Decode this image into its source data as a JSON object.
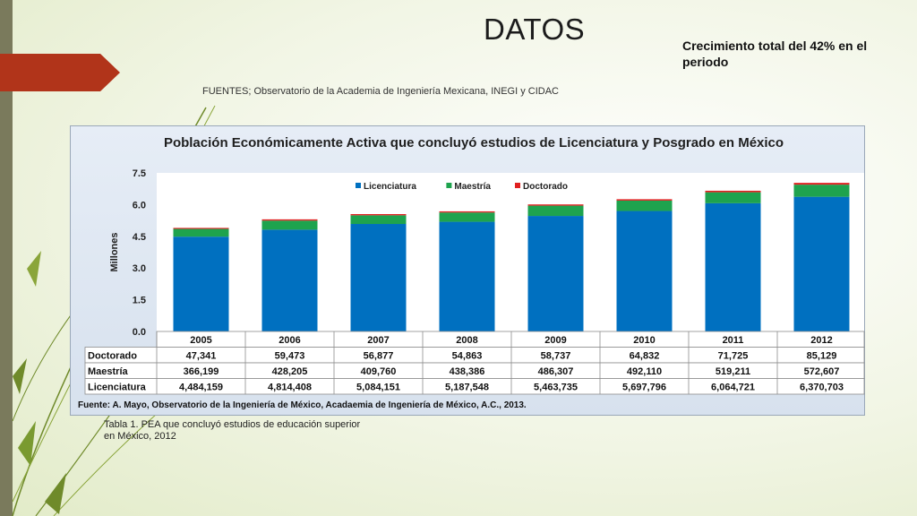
{
  "slide": {
    "title": "DATOS",
    "growth_note": "Crecimiento total del 42% en el periodo",
    "sources": "FUENTES; Observatorio de la Academia de Ingeniería Mexicana, INEGI y CIDAC",
    "caption": "Tabla 1. PEA que concluyó estudios de educación superior en México, 2012",
    "figure_source": "Fuente: A. Mayo, Observatorio de la Ingeniería de México, Acadaemia de Ingeniería de México, A.C., 2013."
  },
  "colors": {
    "licenciatura": "#0070c0",
    "maestria": "#1ea34e",
    "doctorado": "#e02020",
    "accent": "#b1341a"
  },
  "chart_data": {
    "type": "bar",
    "stacked": true,
    "title": "Población Económicamente Activa que concluyó estudios de Licenciatura y Posgrado en México",
    "ylabel": "Millones",
    "ylim": [
      0,
      7.5
    ],
    "yticks": [
      "0.0",
      "1.5",
      "3.0",
      "4.5",
      "6.0",
      "7.5"
    ],
    "legend_position": "top-center",
    "categories": [
      "2005",
      "2006",
      "2007",
      "2008",
      "2009",
      "2010",
      "2011",
      "2012"
    ],
    "series": [
      {
        "name": "Licenciatura",
        "color": "#0070c0",
        "values": [
          4.484159,
          4.814408,
          5.084151,
          5.187548,
          5.463735,
          5.697796,
          6.064721,
          6.370703
        ],
        "labels": [
          "4,484,159",
          "4,814,408",
          "5,084,151",
          "5,187,548",
          "5,463,735",
          "5,697,796",
          "6,064,721",
          "6,370,703"
        ]
      },
      {
        "name": "Maestría",
        "color": "#1ea34e",
        "values": [
          0.366199,
          0.428205,
          0.40976,
          0.438386,
          0.486307,
          0.49211,
          0.519211,
          0.572607
        ],
        "labels": [
          "366,199",
          "428,205",
          "409,760",
          "438,386",
          "486,307",
          "492,110",
          "519,211",
          "572,607"
        ]
      },
      {
        "name": "Doctorado",
        "color": "#e02020",
        "values": [
          0.047341,
          0.059473,
          0.056877,
          0.054863,
          0.058737,
          0.064832,
          0.071725,
          0.085129
        ],
        "labels": [
          "47,341",
          "59,473",
          "56,877",
          "54,863",
          "58,737",
          "64,832",
          "71,725",
          "85,129"
        ]
      }
    ],
    "table_rows": [
      "Doctorado",
      "Maestría",
      "Licenciatura"
    ]
  }
}
